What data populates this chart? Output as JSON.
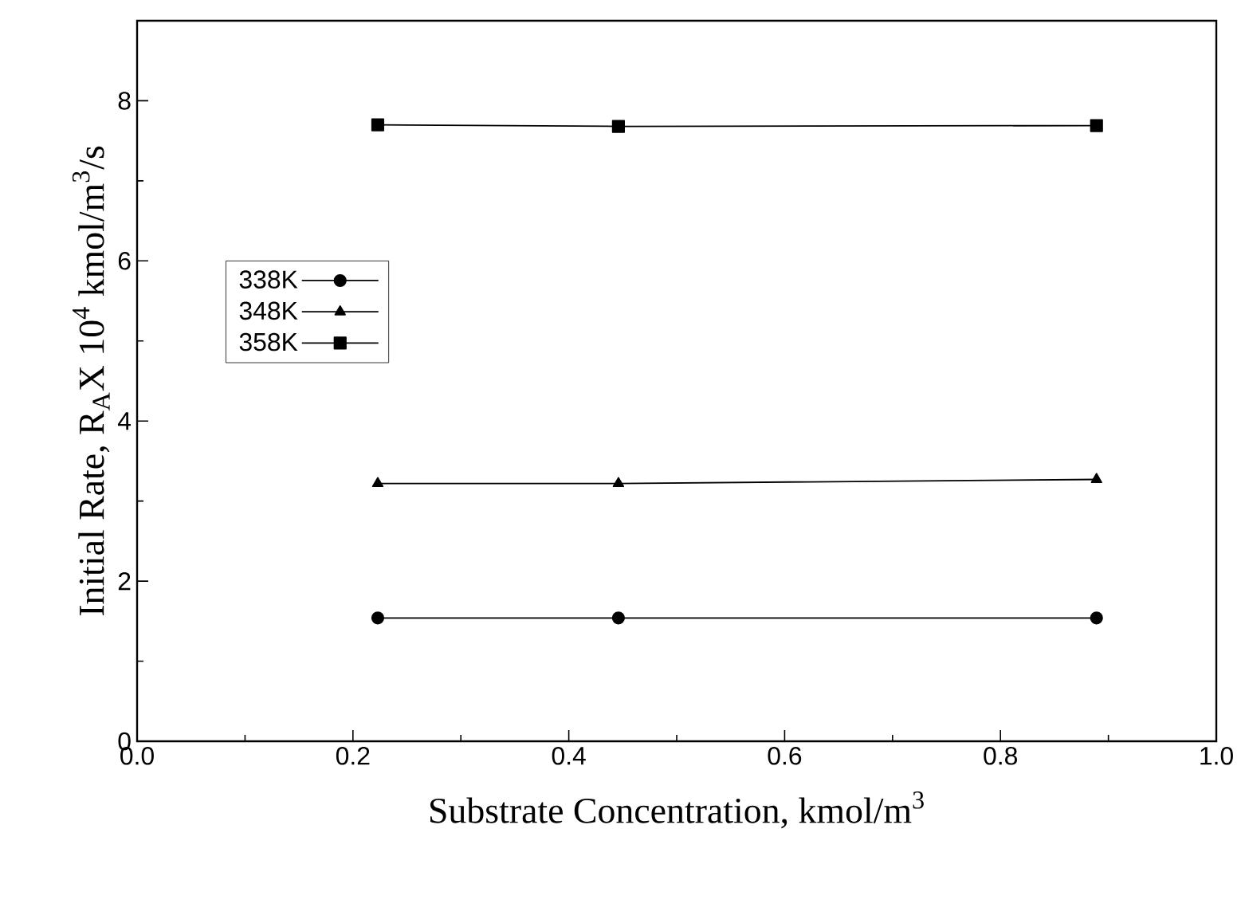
{
  "chart_data": {
    "type": "line",
    "xlabel": "Substrate Concentration, kmol/m$^{3}$",
    "ylabel": "Initial Rate, R$_{A}$X 10$^{4}$ kmol/m$^{3}$/s",
    "x": [
      0.223,
      0.446,
      0.889
    ],
    "series": [
      {
        "name": "338K",
        "color": "#000000",
        "marker": "circle",
        "values": [
          1.54,
          1.54,
          1.54
        ]
      },
      {
        "name": "348K",
        "color": "#000000",
        "marker": "triangle",
        "values": [
          3.22,
          3.22,
          3.27
        ]
      },
      {
        "name": "358K",
        "color": "#000000",
        "marker": "square",
        "values": [
          7.7,
          7.68,
          7.69
        ]
      }
    ],
    "xlim": [
      0,
      1.0
    ],
    "xticks": [
      {
        "value": 0,
        "label": "0.0"
      },
      {
        "value": 0.2,
        "label": "0.2"
      },
      {
        "value": 0.4,
        "label": "0.4"
      },
      {
        "value": 0.6,
        "label": "0.6"
      },
      {
        "value": 0.8,
        "label": "0.8"
      },
      {
        "value": 1.0,
        "label": "1.0"
      }
    ],
    "ylim": [
      0,
      9
    ],
    "yticks": [
      0,
      2,
      4,
      6,
      8
    ],
    "grid": false,
    "legend": "left",
    "line_style": "solid"
  }
}
